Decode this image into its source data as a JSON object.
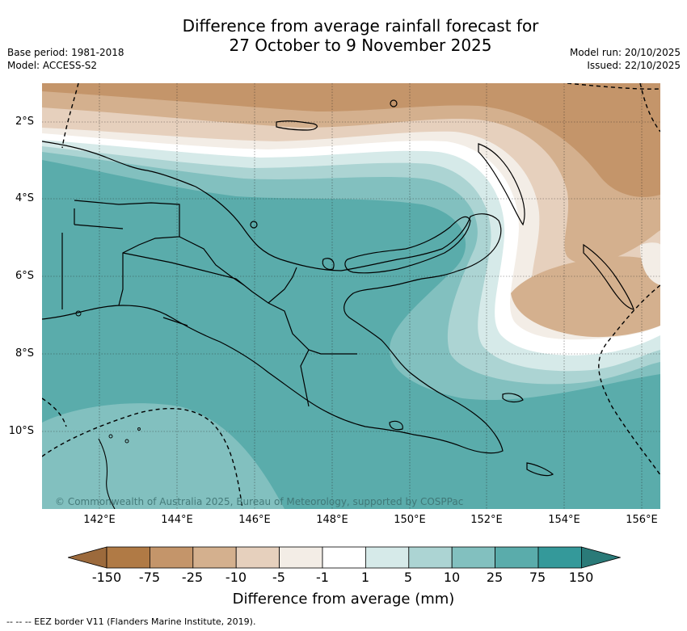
{
  "title_line1": "Difference from average rainfall forecast for",
  "title_line2": "27 October to 9 November 2025",
  "base_period": "Base period: 1981-2018",
  "model": "Model: ACCESS-S2",
  "model_run": "Model run: 20/10/2025",
  "issued": "Issued: 22/10/2025",
  "lat_labels": [
    "2°S",
    "4°S",
    "6°S",
    "8°S",
    "10°S"
  ],
  "lon_labels": [
    "142°E",
    "144°E",
    "146°E",
    "148°E",
    "150°E",
    "152°E",
    "154°E",
    "156°E"
  ],
  "copyright": "© Commonwealth of Australia 2025, Bureau of Meteorology, supported by COSPPac",
  "colorbar": {
    "ticks": [
      "-150",
      "-75",
      "-25",
      "-10",
      "-5",
      "-1",
      "1",
      "5",
      "10",
      "25",
      "75",
      "150"
    ],
    "colors": [
      "#9c6a3c",
      "#b07a45",
      "#c4956a",
      "#d4b08e",
      "#e6d0bd",
      "#f3ede6",
      "#ffffff",
      "#d6eae9",
      "#acd4d3",
      "#82c0bf",
      "#5aacab",
      "#34999a",
      "#2a7a78"
    ],
    "label": "Difference from average (mm)"
  },
  "footnote": "--  --  -- EEZ border V11 (Flanders Marine Institute, 2019)."
}
